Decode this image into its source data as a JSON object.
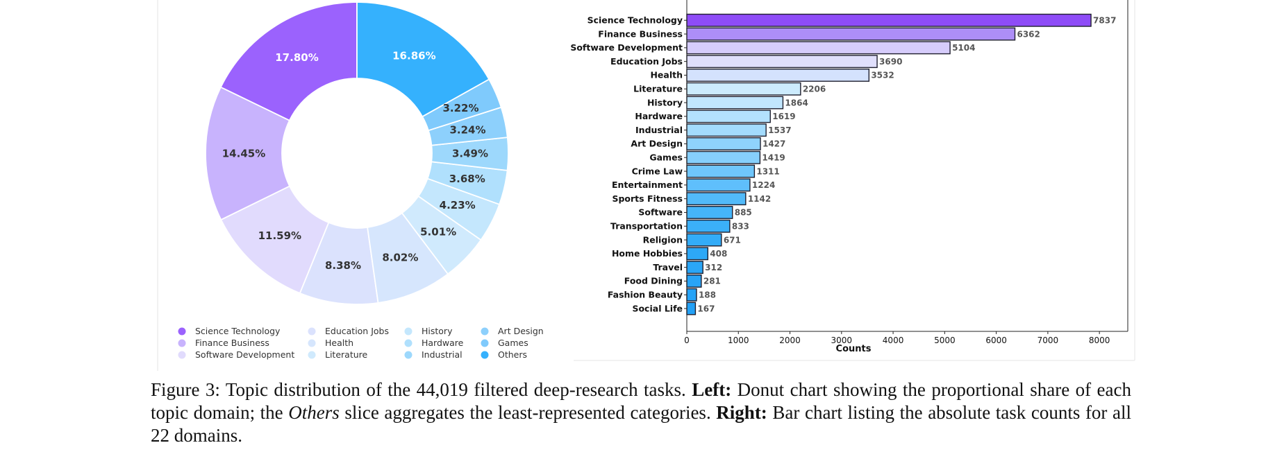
{
  "chart_data": [
    {
      "type": "pie",
      "variant": "donut",
      "slices": [
        {
          "label": "Science Technology",
          "value": 17.8,
          "text": "17.80%",
          "color": "#9b62fd",
          "text_color": "#ffffff"
        },
        {
          "label": "Finance Business",
          "value": 14.45,
          "text": "14.45%",
          "color": "#c8b3fd",
          "text_color": "#333333"
        },
        {
          "label": "Software Development",
          "value": 11.59,
          "text": "11.59%",
          "color": "#e1dbfd",
          "text_color": "#333333"
        },
        {
          "label": "Education Jobs",
          "value": 8.38,
          "text": "8.38%",
          "color": "#dbe2fd",
          "text_color": "#333333"
        },
        {
          "label": "Health",
          "value": 8.02,
          "text": "8.02%",
          "color": "#d6e6fd",
          "text_color": "#333333"
        },
        {
          "label": "Literature",
          "value": 5.01,
          "text": "5.01%",
          "color": "#d0eafd",
          "text_color": "#333333"
        },
        {
          "label": "History",
          "value": 4.23,
          "text": "4.23%",
          "color": "#c4e7fd",
          "text_color": "#333333"
        },
        {
          "label": "Hardware",
          "value": 3.68,
          "text": "3.68%",
          "color": "#b0e0fd",
          "text_color": "#333333"
        },
        {
          "label": "Industrial",
          "value": 3.49,
          "text": "3.49%",
          "color": "#9dd8fc",
          "text_color": "#333333"
        },
        {
          "label": "Art Design",
          "value": 3.24,
          "text": "3.24%",
          "color": "#8dd0fc",
          "text_color": "#333333"
        },
        {
          "label": "Games",
          "value": 3.22,
          "text": "3.22%",
          "color": "#7fcafc",
          "text_color": "#333333"
        },
        {
          "label": "Others",
          "value": 16.86,
          "text": "16.86%",
          "color": "#35b1fd",
          "text_color": "#ffffff"
        }
      ],
      "legend": {
        "placement": "bottom",
        "columns": [
          [
            "Science Technology",
            "Finance Business",
            "Software Development"
          ],
          [
            "Education Jobs",
            "Health",
            "Literature"
          ],
          [
            "History",
            "Hardware",
            "Industrial"
          ],
          [
            "Art Design",
            "Games",
            "Others"
          ]
        ]
      }
    },
    {
      "type": "bar",
      "orientation": "horizontal",
      "categories": [
        "Science Technology",
        "Finance Business",
        "Software Development",
        "Education Jobs",
        "Health",
        "Literature",
        "History",
        "Hardware",
        "Industrial",
        "Art Design",
        "Games",
        "Crime Law",
        "Entertainment",
        "Sports Fitness",
        "Software",
        "Transportation",
        "Religion",
        "Home Hobbies",
        "Travel",
        "Food Dining",
        "Fashion Beauty",
        "Social Life"
      ],
      "values": [
        7837,
        6362,
        5104,
        3690,
        3532,
        2206,
        1864,
        1619,
        1537,
        1427,
        1419,
        1311,
        1224,
        1142,
        885,
        833,
        671,
        408,
        312,
        281,
        188,
        167
      ],
      "colors": [
        "#8e4cf7",
        "#ad8ef7",
        "#d6ccfb",
        "#e0dffc",
        "#d4e2fd",
        "#ccebfd",
        "#c1e6fd",
        "#b3e1fd",
        "#a3dbfd",
        "#8fd3fc",
        "#86cffc",
        "#6fc6fc",
        "#5fbffc",
        "#52baf9",
        "#45b5f9",
        "#3bb0f8",
        "#33acf8",
        "#2da8f7",
        "#2aa6f7",
        "#28a4f7",
        "#26a3f7",
        "#24a1f6"
      ],
      "xlabel": "Counts",
      "xticks": [
        0,
        1000,
        2000,
        3000,
        4000,
        5000,
        6000,
        7000,
        8000
      ],
      "xlim": [
        0,
        8550
      ]
    }
  ],
  "caption": {
    "prefix": "Figure 3: Topic distribution of the 44,019 filtered deep-research tasks. ",
    "left_label": "Left:",
    "left_text": " Donut chart showing the proportional share of each topic domain; the ",
    "others_word": "Others",
    "middle_text": " slice aggregates the least-represented categories. ",
    "right_label": "Right:",
    "right_text": " Bar chart listing the absolute task counts for all 22 domains."
  }
}
